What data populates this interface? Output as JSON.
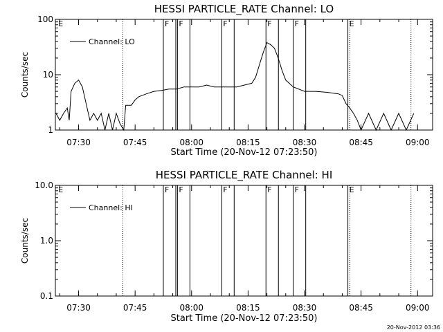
{
  "timestamp": "20-Nov-2012 03:36",
  "chart_data": [
    {
      "type": "line",
      "title": "HESSI PARTICLE_RATE Channel: LO",
      "xlabel": "Start Time (20-Nov-12 07:23:50)",
      "ylabel": "Counts/sec",
      "yscale": "log",
      "ylim": [
        1,
        100
      ],
      "y_ticks": [
        "1",
        "10",
        "100"
      ],
      "xlim": [
        "07:23:50",
        "09:04:00"
      ],
      "x_ticks": [
        "07:30",
        "07:45",
        "08:00",
        "08:15",
        "08:30",
        "08:45",
        "09:00"
      ],
      "legend": {
        "label": "Channel: LO",
        "position": "top-left"
      },
      "series": [
        {
          "name": "Channel: LO",
          "points": [
            [
              "07:24:00",
              2
            ],
            [
              "07:25:00",
              1.5
            ],
            [
              "07:26:00",
              2
            ],
            [
              "07:27:00",
              2.5
            ],
            [
              "07:27:30",
              1.5
            ],
            [
              "07:28:00",
              5
            ],
            [
              "07:29:00",
              7
            ],
            [
              "07:30:00",
              8
            ],
            [
              "07:31:00",
              6
            ],
            [
              "07:32:00",
              3
            ],
            [
              "07:33:00",
              1.5
            ],
            [
              "07:34:00",
              2
            ],
            [
              "07:35:00",
              1.5
            ],
            [
              "07:36:00",
              2
            ],
            [
              "07:37:00",
              1
            ],
            [
              "07:38:00",
              2
            ],
            [
              "07:39:00",
              1
            ],
            [
              "07:40:00",
              2
            ],
            [
              "07:41:00",
              1.3
            ],
            [
              "07:42:00",
              1
            ],
            [
              "07:42:30",
              2.8
            ],
            [
              "07:44:00",
              2.8
            ],
            [
              "07:45:00",
              3.5
            ],
            [
              "07:46:00",
              4
            ],
            [
              "07:48:00",
              4.5
            ],
            [
              "07:50:00",
              5
            ],
            [
              "07:52:00",
              5.2
            ],
            [
              "07:54:00",
              5.5
            ],
            [
              "07:56:00",
              5.5
            ],
            [
              "07:58:00",
              6
            ],
            [
              "08:00:00",
              6
            ],
            [
              "08:02:00",
              6
            ],
            [
              "08:04:00",
              6.5
            ],
            [
              "08:06:00",
              6
            ],
            [
              "08:08:00",
              6
            ],
            [
              "08:10:00",
              6
            ],
            [
              "08:12:00",
              6
            ],
            [
              "08:14:00",
              6.5
            ],
            [
              "08:16:00",
              7
            ],
            [
              "08:17:00",
              9
            ],
            [
              "08:18:00",
              15
            ],
            [
              "08:19:00",
              25
            ],
            [
              "08:20:00",
              38
            ],
            [
              "08:21:00",
              35
            ],
            [
              "08:22:00",
              30
            ],
            [
              "08:23:00",
              20
            ],
            [
              "08:24:00",
              12
            ],
            [
              "08:25:00",
              8
            ],
            [
              "08:27:00",
              6
            ],
            [
              "08:30:00",
              5
            ],
            [
              "08:33:00",
              5
            ],
            [
              "08:36:00",
              4.8
            ],
            [
              "08:39:00",
              4.5
            ],
            [
              "08:40:00",
              4.2
            ],
            [
              "08:41:00",
              3
            ],
            [
              "08:42:00",
              2.5
            ],
            [
              "08:43:00",
              2
            ],
            [
              "08:44:00",
              1.5
            ],
            [
              "08:45:00",
              1
            ],
            [
              "08:47:00",
              2
            ],
            [
              "08:49:00",
              1
            ],
            [
              "08:51:00",
              2
            ],
            [
              "08:53:00",
              1
            ],
            [
              "08:55:00",
              2
            ],
            [
              "08:57:00",
              1
            ],
            [
              "08:59:00",
              2
            ]
          ]
        }
      ],
      "annotations": [
        {
          "time": "07:52:30",
          "label": "F"
        },
        {
          "time": "07:56:15",
          "label": "F"
        },
        {
          "time": "08:08:00",
          "label": "F"
        },
        {
          "time": "08:19:45",
          "label": "F"
        },
        {
          "time": "08:27:00",
          "label": "F"
        },
        {
          "time": "07:24:15",
          "label": "E"
        },
        {
          "time": "08:41:30",
          "label": "E"
        }
      ]
    },
    {
      "type": "line",
      "title": "HESSI PARTICLE_RATE Channel: HI",
      "xlabel": "Start Time (20-Nov-12 07:23:50)",
      "ylabel": "Counts/sec",
      "yscale": "log",
      "ylim": [
        0.1,
        10
      ],
      "y_ticks": [
        "0.1",
        "1.0",
        "10.0"
      ],
      "xlim": [
        "07:23:50",
        "09:04:00"
      ],
      "x_ticks": [
        "07:30",
        "07:45",
        "08:00",
        "08:15",
        "08:30",
        "08:45",
        "09:00"
      ],
      "legend": {
        "label": "Channel: HI",
        "position": "top-left"
      },
      "series": [
        {
          "name": "Channel: HI",
          "points": []
        }
      ],
      "annotations": [
        {
          "time": "07:52:30",
          "label": "F"
        },
        {
          "time": "07:56:15",
          "label": "F"
        },
        {
          "time": "08:08:00",
          "label": "F"
        },
        {
          "time": "08:19:45",
          "label": "F"
        },
        {
          "time": "08:27:00",
          "label": "F"
        },
        {
          "time": "07:24:15",
          "label": "E"
        },
        {
          "time": "08:41:30",
          "label": "E"
        }
      ]
    }
  ]
}
